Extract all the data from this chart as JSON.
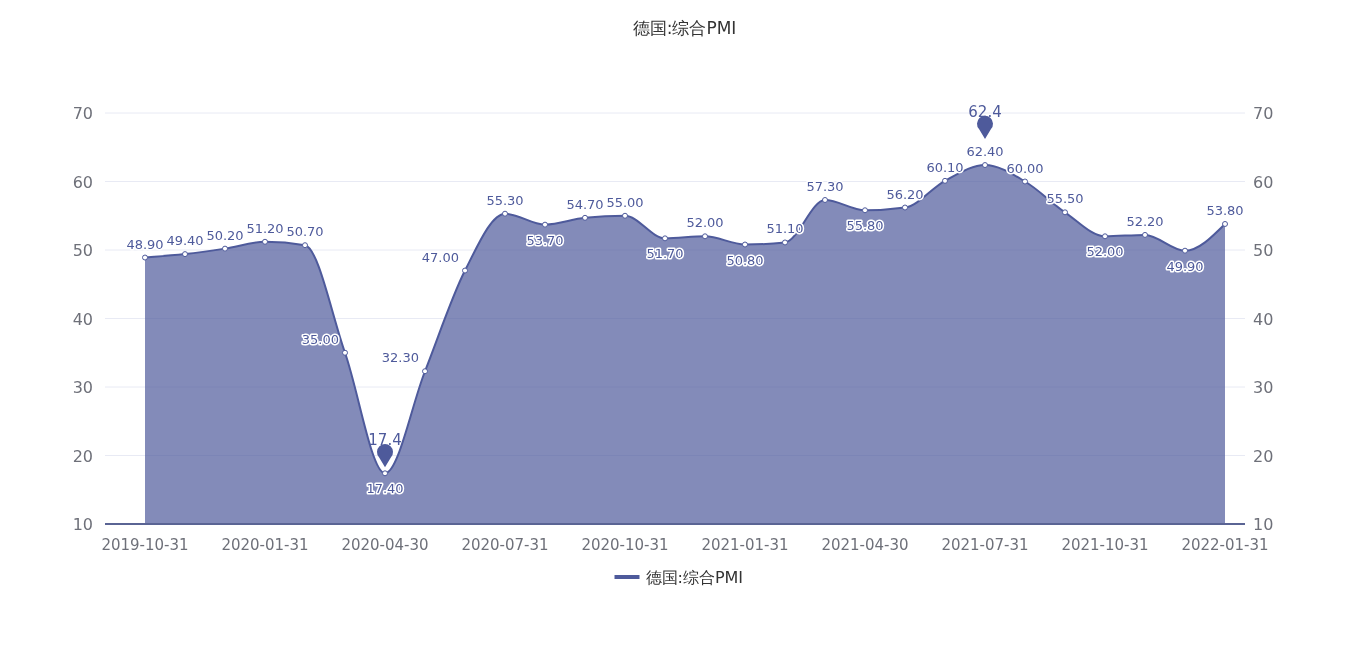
{
  "chart_data": {
    "type": "area",
    "title": "德国:综合PMI",
    "categories": [
      "2019-10-31",
      null,
      null,
      "2020-01-31",
      null,
      null,
      "2020-04-30",
      null,
      null,
      "2020-07-31",
      null,
      null,
      "2020-10-31",
      null,
      null,
      "2021-01-31",
      null,
      null,
      "2021-04-30",
      null,
      null,
      "2021-07-31",
      null,
      null,
      "2021-10-31",
      null,
      null,
      "2022-01-31"
    ],
    "series": [
      {
        "name": "德国:综合PMI",
        "color": "#4e5a9b",
        "values": [
          48.9,
          49.4,
          50.2,
          51.2,
          50.7,
          35.0,
          17.4,
          32.3,
          47.0,
          55.3,
          53.7,
          54.7,
          55.0,
          51.7,
          52.0,
          50.8,
          51.1,
          57.3,
          55.8,
          56.2,
          60.1,
          62.4,
          60.0,
          55.5,
          52.0,
          52.2,
          49.9,
          53.8
        ],
        "value_labels": [
          "48.90",
          "49.40",
          "50.20",
          "51.20",
          "50.70",
          "35.00",
          "17.40",
          "32.30",
          "47.00",
          "55.30",
          "53.70",
          "54.70",
          "55.00",
          "51.70",
          "52.00",
          "50.80",
          "51.10",
          "57.30",
          "55.80",
          "56.20",
          "60.10",
          "62.40",
          "60.00",
          "55.50",
          "52.00",
          "52.20",
          "49.90",
          "53.80"
        ]
      }
    ],
    "ylim": [
      10,
      70
    ],
    "yticks": [
      10,
      20,
      30,
      40,
      50,
      60,
      70
    ],
    "y2lim": [
      10,
      70
    ],
    "y2ticks": [
      10,
      20,
      30,
      40,
      50,
      60,
      70
    ],
    "grid": "y",
    "legend": "bottom",
    "marker": "circle",
    "annotations": [
      {
        "text": "62.4",
        "x": "2021-07-31",
        "y": 62.4
      },
      {
        "text": "17.4",
        "x": "2020-04-30",
        "y": 17.4
      }
    ]
  }
}
